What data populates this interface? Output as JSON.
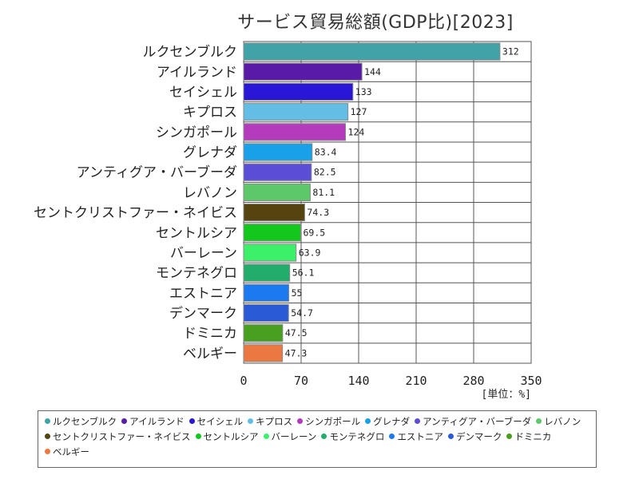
{
  "chart_data": {
    "type": "bar",
    "orientation": "horizontal",
    "title": "サービス貿易総額(GDP比)[2023]",
    "unit_label": "[単位：%]",
    "xlim": [
      0,
      350
    ],
    "xticks": [
      "0",
      "70",
      "140",
      "210",
      "280",
      "350"
    ],
    "grid": true,
    "legend_position": "bottom",
    "categories": [
      "ルクセンブルク",
      "アイルランド",
      "セイシェル",
      "キプロス",
      "シンガポール",
      "グレナダ",
      "アンティグア・バーブーダ",
      "レバノン",
      "セントクリストファー・ネイビス",
      "セントルシア",
      "バーレーン",
      "モンテネグロ",
      "エストニア",
      "デンマーク",
      "ドミニカ",
      "ベルギー"
    ],
    "values": [
      312,
      144,
      133,
      127,
      124,
      83.4,
      82.5,
      81.1,
      74.3,
      69.5,
      63.9,
      56.1,
      55,
      54.7,
      47.5,
      47.3
    ],
    "value_labels": [
      "312",
      "144",
      "133",
      "127",
      "124",
      "83.4",
      "82.5",
      "81.1",
      "74.3",
      "69.5",
      "63.9",
      "56.1",
      "55",
      "54.7",
      "47.5",
      "47.3"
    ],
    "colors": [
      "#3fa3a8",
      "#5a1aa8",
      "#2a16d6",
      "#64bde4",
      "#b43cbc",
      "#18a0e8",
      "#5a4ed6",
      "#5cc86a",
      "#554410",
      "#12c81c",
      "#3cf06a",
      "#22ad6c",
      "#1c7af0",
      "#2a5ad6",
      "#48a01e",
      "#ea7840"
    ]
  }
}
